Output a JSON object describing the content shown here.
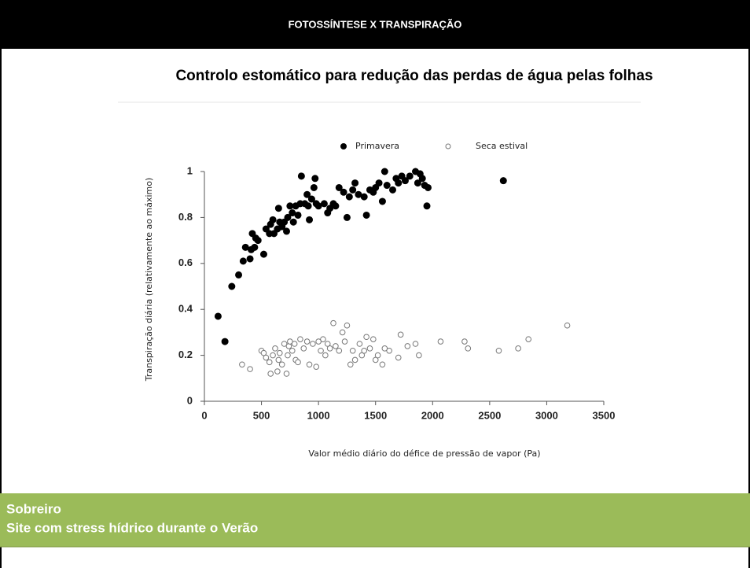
{
  "header": {
    "title": "FOTOSSÍNTESE X TRANSPIRAÇÃO"
  },
  "footer": {
    "lines": [
      "Sobreiro",
      "Site com stress hídrico durante o Verão"
    ]
  },
  "chart_data": {
    "type": "scatter",
    "title": "Controlo estomático para redução das perdas de água pelas folhas",
    "x_label": "Valor médio diário do déficе de pressão de vapor (Pa)",
    "y_label": "Transpiração diária (relativamente ao máximo)",
    "xlim": [
      0,
      3500
    ],
    "xticks": [
      0,
      500,
      1000,
      1500,
      2000,
      2500,
      3000,
      3500
    ],
    "ylim": [
      0,
      1
    ],
    "yticks": [
      0,
      0.2,
      0.4,
      0.6,
      0.8,
      1
    ],
    "legend": "top",
    "series": [
      {
        "name": "Primavera",
        "color": "#000000",
        "filled": true,
        "x": [
          120,
          180,
          240,
          300,
          340,
          360,
          400,
          410,
          420,
          440,
          450,
          470,
          520,
          540,
          570,
          580,
          600,
          610,
          640,
          650,
          660,
          680,
          700,
          720,
          730,
          750,
          770,
          780,
          800,
          820,
          840,
          850,
          880,
          900,
          910,
          920,
          940,
          960,
          970,
          980,
          1000,
          1050,
          1080,
          1100,
          1130,
          1150,
          1180,
          1220,
          1250,
          1270,
          1300,
          1320,
          1350,
          1400,
          1420,
          1450,
          1480,
          1500,
          1530,
          1560,
          1580,
          1600,
          1650,
          1680,
          1700,
          1730,
          1760,
          1800,
          1850,
          1870,
          1890,
          1910,
          1930,
          1950,
          1960,
          2620
        ],
        "y": [
          0.37,
          0.26,
          0.5,
          0.55,
          0.61,
          0.67,
          0.62,
          0.66,
          0.73,
          0.67,
          0.71,
          0.7,
          0.64,
          0.75,
          0.73,
          0.77,
          0.79,
          0.73,
          0.75,
          0.84,
          0.78,
          0.76,
          0.78,
          0.74,
          0.8,
          0.85,
          0.82,
          0.78,
          0.85,
          0.81,
          0.86,
          0.98,
          0.86,
          0.9,
          0.85,
          0.79,
          0.88,
          0.93,
          0.97,
          0.86,
          0.85,
          0.86,
          0.82,
          0.84,
          0.86,
          0.85,
          0.93,
          0.91,
          0.8,
          0.89,
          0.92,
          0.95,
          0.9,
          0.89,
          0.81,
          0.92,
          0.91,
          0.93,
          0.95,
          0.87,
          1.0,
          0.94,
          0.92,
          0.97,
          0.95,
          0.98,
          0.96,
          0.98,
          1.0,
          0.95,
          0.99,
          0.97,
          0.94,
          0.85,
          0.93,
          0.96
        ]
      },
      {
        "name": "Seca estival",
        "color": "#777777",
        "filled": false,
        "x": [
          330,
          400,
          500,
          520,
          540,
          570,
          580,
          600,
          620,
          640,
          650,
          660,
          680,
          700,
          720,
          730,
          740,
          750,
          770,
          790,
          800,
          820,
          840,
          870,
          900,
          920,
          950,
          980,
          1000,
          1020,
          1040,
          1060,
          1080,
          1100,
          1130,
          1150,
          1180,
          1210,
          1230,
          1250,
          1280,
          1300,
          1320,
          1360,
          1380,
          1400,
          1420,
          1450,
          1480,
          1500,
          1520,
          1560,
          1580,
          1620,
          1700,
          1720,
          1780,
          1850,
          1880,
          2070,
          2280,
          2310,
          2580,
          2750,
          2840,
          3180
        ],
        "y": [
          0.16,
          0.14,
          0.22,
          0.21,
          0.19,
          0.17,
          0.12,
          0.2,
          0.23,
          0.13,
          0.18,
          0.21,
          0.16,
          0.25,
          0.12,
          0.2,
          0.24,
          0.26,
          0.22,
          0.25,
          0.18,
          0.17,
          0.27,
          0.23,
          0.26,
          0.16,
          0.25,
          0.15,
          0.26,
          0.22,
          0.27,
          0.2,
          0.25,
          0.23,
          0.34,
          0.24,
          0.22,
          0.3,
          0.26,
          0.33,
          0.16,
          0.22,
          0.18,
          0.25,
          0.2,
          0.22,
          0.28,
          0.23,
          0.27,
          0.18,
          0.2,
          0.16,
          0.23,
          0.22,
          0.19,
          0.29,
          0.24,
          0.25,
          0.2,
          0.26,
          0.26,
          0.23,
          0.22,
          0.23,
          0.27,
          0.33
        ]
      }
    ]
  }
}
